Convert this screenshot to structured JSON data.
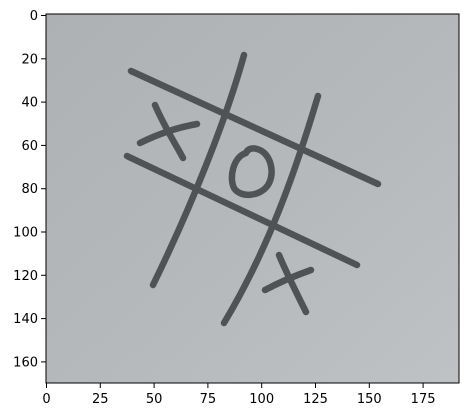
{
  "axes": {
    "x_ticks": [
      "0",
      "25",
      "50",
      "75",
      "100",
      "125",
      "150",
      "175"
    ],
    "y_ticks": [
      "0",
      "20",
      "40",
      "60",
      "80",
      "100",
      "120",
      "140",
      "160"
    ],
    "x_range": [
      0,
      192
    ],
    "y_range": [
      0,
      172
    ]
  },
  "image_content": {
    "paper_color": "#b4b7ba",
    "ink_color": "#4f5356",
    "board": "tic-tac-toe grid",
    "marks": [
      {
        "symbol": "X",
        "cell": "top-left"
      },
      {
        "symbol": "O",
        "cell": "center"
      },
      {
        "symbol": "X",
        "cell": "bottom-right"
      }
    ]
  }
}
